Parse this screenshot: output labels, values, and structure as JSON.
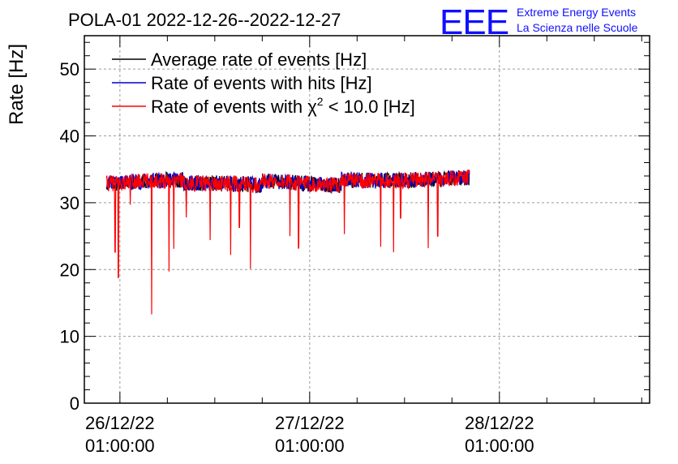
{
  "title": "POLA-01 2022-12-26--2022-12-27",
  "logo": {
    "mark": "EEE",
    "line1": "Extreme Energy Events",
    "line2": "La Scienza nelle Scuole",
    "color": "#1010ff"
  },
  "chart_data": {
    "type": "line",
    "ylabel": "Rate [Hz]",
    "ylim": [
      0,
      55
    ],
    "yticks": [
      0,
      10,
      20,
      30,
      40,
      50
    ],
    "ytick_labels": [
      "0",
      "10",
      "20",
      "30",
      "40",
      "50"
    ],
    "xlim_hours": [
      -4.5,
      67
    ],
    "x_major_ticks": [
      {
        "hours": 0,
        "line1": "26/12/22",
        "line2": "01:00:00"
      },
      {
        "hours": 24,
        "line1": "27/12/22",
        "line2": "01:00:00"
      },
      {
        "hours": 48,
        "line1": "28/12/22",
        "line2": "01:00:00"
      }
    ],
    "x_range_hours": [
      -1.7,
      44.2
    ],
    "grid": true,
    "legend_placement": "top-left",
    "series": [
      {
        "name": "Average rate of events [Hz]",
        "color": "#000000",
        "baseline": 33
      },
      {
        "name": "Rate of events with hits [Hz]",
        "color": "#0000cc",
        "baseline": 33
      },
      {
        "name": "Rate of events with χ² < 10.0 [Hz]",
        "name_parts": [
          "Rate of events with ",
          "χ",
          "2",
          " < 10.0 [Hz]"
        ],
        "color": "#ff0000",
        "baseline": 33,
        "dips": [
          [
            -0.6,
            22.6
          ],
          [
            -0.2,
            18.8
          ],
          [
            1.3,
            29.7
          ],
          [
            4.0,
            13.3
          ],
          [
            6.2,
            19.7
          ],
          [
            6.8,
            23.1
          ],
          [
            8.4,
            27.8
          ],
          [
            11.4,
            24.4
          ],
          [
            14.0,
            22.2
          ],
          [
            15.1,
            26.3
          ],
          [
            16.5,
            20.1
          ],
          [
            21.5,
            25.0
          ],
          [
            22.6,
            23.2
          ],
          [
            28.4,
            25.3
          ],
          [
            33.0,
            23.4
          ],
          [
            34.6,
            22.6
          ],
          [
            35.5,
            27.7
          ],
          [
            39.0,
            23.2
          ],
          [
            40.2,
            25.0
          ]
        ]
      }
    ]
  }
}
